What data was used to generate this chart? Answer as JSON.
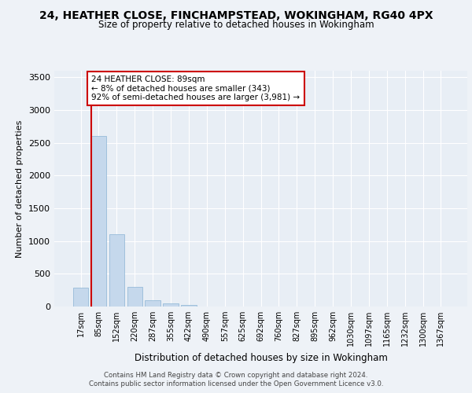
{
  "title_line1": "24, HEATHER CLOSE, FINCHAMPSTEAD, WOKINGHAM, RG40 4PX",
  "title_line2": "Size of property relative to detached houses in Wokingham",
  "xlabel": "Distribution of detached houses by size in Wokingham",
  "ylabel": "Number of detached properties",
  "bar_labels": [
    "17sqm",
    "85sqm",
    "152sqm",
    "220sqm",
    "287sqm",
    "355sqm",
    "422sqm",
    "490sqm",
    "557sqm",
    "625sqm",
    "692sqm",
    "760sqm",
    "827sqm",
    "895sqm",
    "962sqm",
    "1030sqm",
    "1097sqm",
    "1165sqm",
    "1232sqm",
    "1300sqm",
    "1367sqm"
  ],
  "bar_values": [
    290,
    2600,
    1110,
    300,
    95,
    45,
    30,
    0,
    0,
    0,
    0,
    0,
    0,
    0,
    0,
    0,
    0,
    0,
    0,
    0,
    0
  ],
  "bar_color": "#c5d8ec",
  "bar_edge_color": "#8ab4d4",
  "annotation_title": "24 HEATHER CLOSE: 89sqm",
  "annotation_line2": "← 8% of detached houses are smaller (343)",
  "annotation_line3": "92% of semi-detached houses are larger (3,981) →",
  "vline_color": "#cc0000",
  "annotation_box_color": "#cc0000",
  "ylim": [
    0,
    3600
  ],
  "yticks": [
    0,
    500,
    1000,
    1500,
    2000,
    2500,
    3000,
    3500
  ],
  "background_color": "#eef2f7",
  "plot_bg_color": "#e8eef5",
  "footer_line1": "Contains HM Land Registry data © Crown copyright and database right 2024.",
  "footer_line2": "Contains public sector information licensed under the Open Government Licence v3.0."
}
